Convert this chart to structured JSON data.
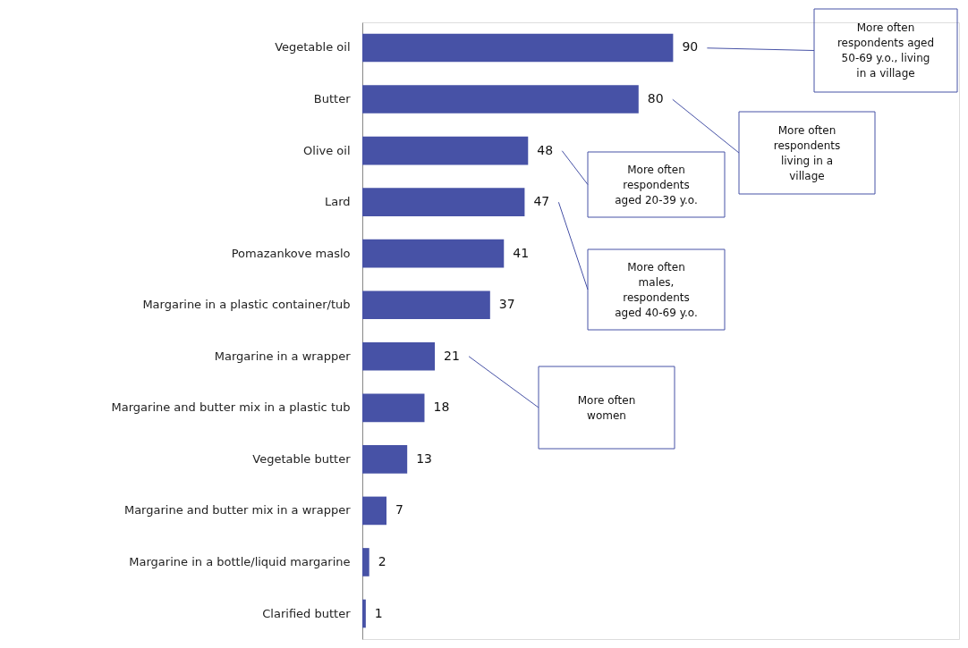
{
  "chart_data": {
    "type": "bar",
    "orientation": "horizontal",
    "data_labels": true,
    "grid": false,
    "tick_labels": "y",
    "categories": [
      "Vegetable oil",
      "Butter",
      "Olive oil",
      "Lard",
      "Pomazankove maslo",
      "Margarine in a plastic container/tub",
      "Margarine in a wrapper",
      "Margarine and butter mix in a plastic tub",
      "Vegetable butter",
      "Margarine and butter mix in a wrapper",
      "Margarine in a bottle/liquid margarine",
      "Clarified butter"
    ],
    "values": [
      90,
      80,
      48,
      47,
      41,
      37,
      21,
      18,
      13,
      7,
      2,
      1
    ],
    "color": "#4752a6",
    "annotations": [
      "More often respondents aged 50-69 y.o., living in a village",
      "More often respondents living in a village",
      "More often respondents aged 20-39 y.o.",
      "More often males, respondents aged 40-69 y.o.",
      "More often women"
    ]
  }
}
